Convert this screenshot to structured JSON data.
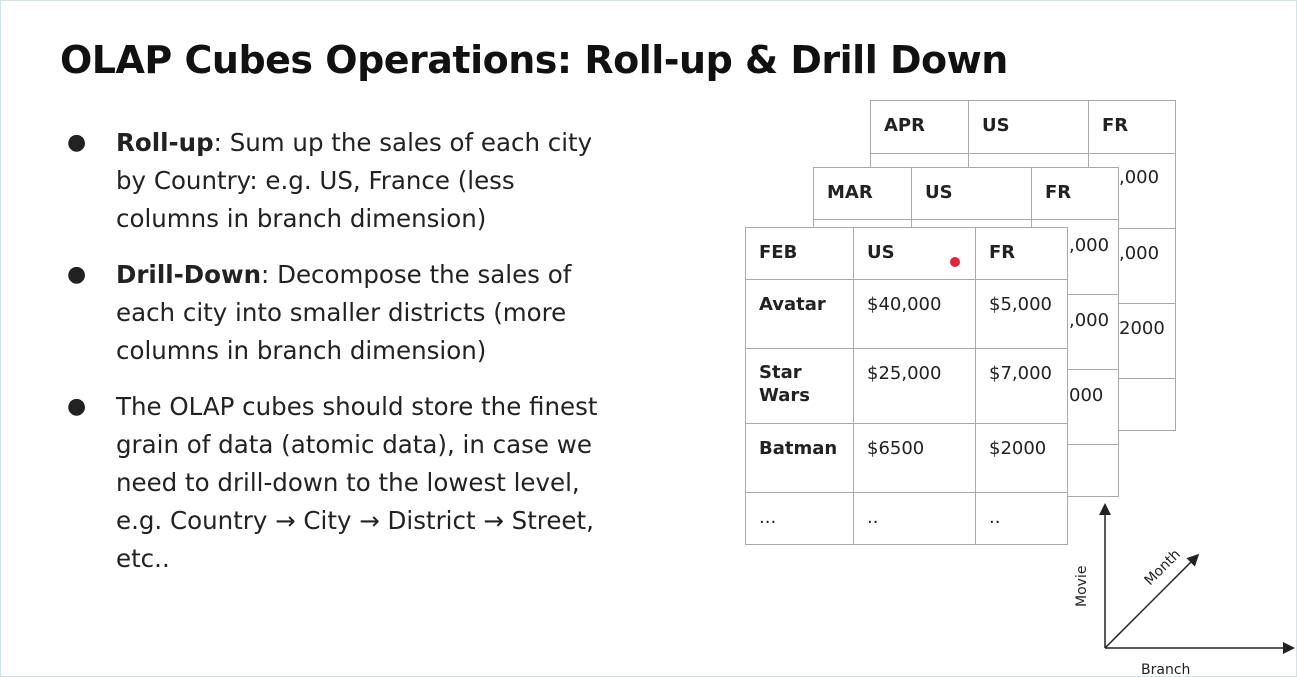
{
  "slide": {
    "title": "OLAP Cubes Operations: Roll-up & Drill Down",
    "bullets": [
      {
        "bold": "Roll-up",
        "text": ": Sum up the sales of each city by Country: e.g. US, France (less columns in branch dimension)"
      },
      {
        "bold": "Drill-Down",
        "text": ": Decompose the sales of each city into smaller districts (more columns in branch dimension)"
      },
      {
        "bold": "",
        "text": "The OLAP cubes should store the finest grain of data (atomic data), in case we need to drill-down to the lowest level, e.g. Country → City → District → Street, etc.."
      }
    ]
  },
  "cube": {
    "apr": {
      "headers": [
        "APR",
        "US",
        "FR"
      ],
      "visible_fragments": [
        ",000",
        ",000",
        "2000"
      ]
    },
    "mar": {
      "headers": [
        "MAR",
        "US",
        "FR"
      ],
      "visible_fragments": ",000|,000|000"
    },
    "feb": {
      "headers": [
        "FEB",
        "US",
        "FR"
      ],
      "rows": [
        [
          "Avatar",
          "$40,000",
          "$5,000"
        ],
        [
          "Star Wars",
          "$25,000",
          "$7,000"
        ],
        [
          "Batman",
          "$6500",
          "$2000"
        ],
        [
          "...",
          "..",
          ".."
        ]
      ]
    },
    "axes": {
      "vertical": "Movie",
      "diagonal": "Month",
      "horizontal": "Branch"
    }
  },
  "colors": {
    "grid_border": "#a9a9a9",
    "pointer_dot": "#e0263f"
  }
}
